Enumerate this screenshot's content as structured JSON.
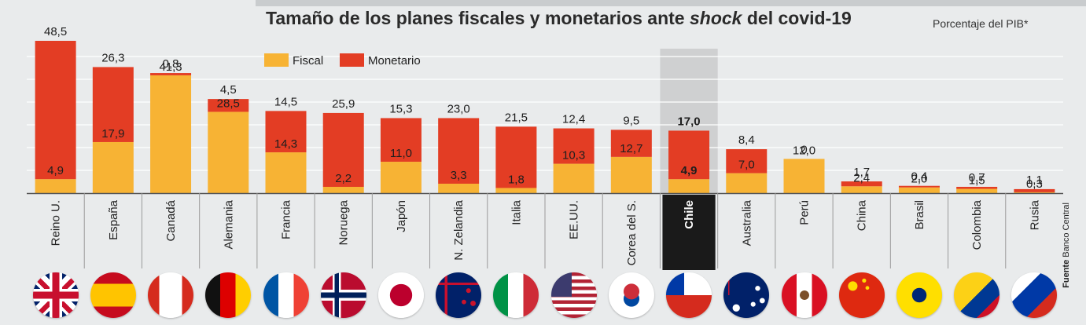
{
  "title": {
    "main": "Tamaño de los planes fiscales y monetarios ante ",
    "emph": "shock",
    "tail": " del covid-19"
  },
  "unit_note": "Porcentaje del PIB*",
  "source": {
    "label": "Fuente",
    "name": "Banco Central"
  },
  "colors": {
    "fiscal": "#f7b334",
    "monetary": "#e33d24",
    "highlight_bg": "#cfd0d1",
    "highlight_label_bg": "#1a1a1a"
  },
  "chart_data": {
    "type": "bar",
    "stacked": true,
    "categories": [
      "Reino U.",
      "España",
      "Canadá",
      "Alemania",
      "Francia",
      "Noruega",
      "Japón",
      "N. Zelandia",
      "Italia",
      "EE.UU.",
      "Corea del S.",
      "Chile",
      "Australia",
      "Perú",
      "China",
      "Brasil",
      "Colombia",
      "Rusia"
    ],
    "series": [
      {
        "name": "Fiscal",
        "values": [
          4.9,
          17.9,
          41.3,
          28.5,
          14.3,
          2.2,
          11.0,
          3.3,
          1.8,
          10.3,
          12.7,
          4.9,
          7.0,
          12.0,
          2.4,
          2.0,
          1.5,
          0.3
        ],
        "labels": [
          "4,9",
          "17,9",
          "41,3",
          "28,5",
          "14,3",
          "2,2",
          "11,0",
          "3,3",
          "1,8",
          "10,3",
          "12,7",
          "4,9",
          "7,0",
          "12,0",
          "2,4",
          "2,0",
          "1,5",
          "0,3"
        ]
      },
      {
        "name": "Monetario",
        "values": [
          48.5,
          26.3,
          0.8,
          4.5,
          14.5,
          25.9,
          15.3,
          23.0,
          21.5,
          12.4,
          9.5,
          17.0,
          8.4,
          0,
          1.7,
          0.4,
          0.7,
          1.1
        ],
        "labels": [
          "48,5",
          "26,3",
          "0,8",
          "4,5",
          "14,5",
          "25,9",
          "15,3",
          "23,0",
          "21,5",
          "12,4",
          "9,5",
          "17,0",
          "8,4",
          "0",
          "1,7",
          "0,4",
          "0,7",
          "1,1"
        ]
      }
    ],
    "highlight": "Chile",
    "grid": true,
    "legend": "top-left",
    "xlabel": "",
    "ylabel": ""
  },
  "flags": [
    "uk-flag-icon",
    "spain-flag-icon",
    "canada-flag-icon",
    "germany-flag-icon",
    "france-flag-icon",
    "norway-flag-icon",
    "japan-flag-icon",
    "new-zealand-flag-icon",
    "italy-flag-icon",
    "usa-flag-icon",
    "south-korea-flag-icon",
    "chile-flag-icon",
    "australia-flag-icon",
    "peru-flag-icon",
    "china-flag-icon",
    "brazil-flag-icon",
    "colombia-flag-icon",
    "russia-flag-icon"
  ]
}
